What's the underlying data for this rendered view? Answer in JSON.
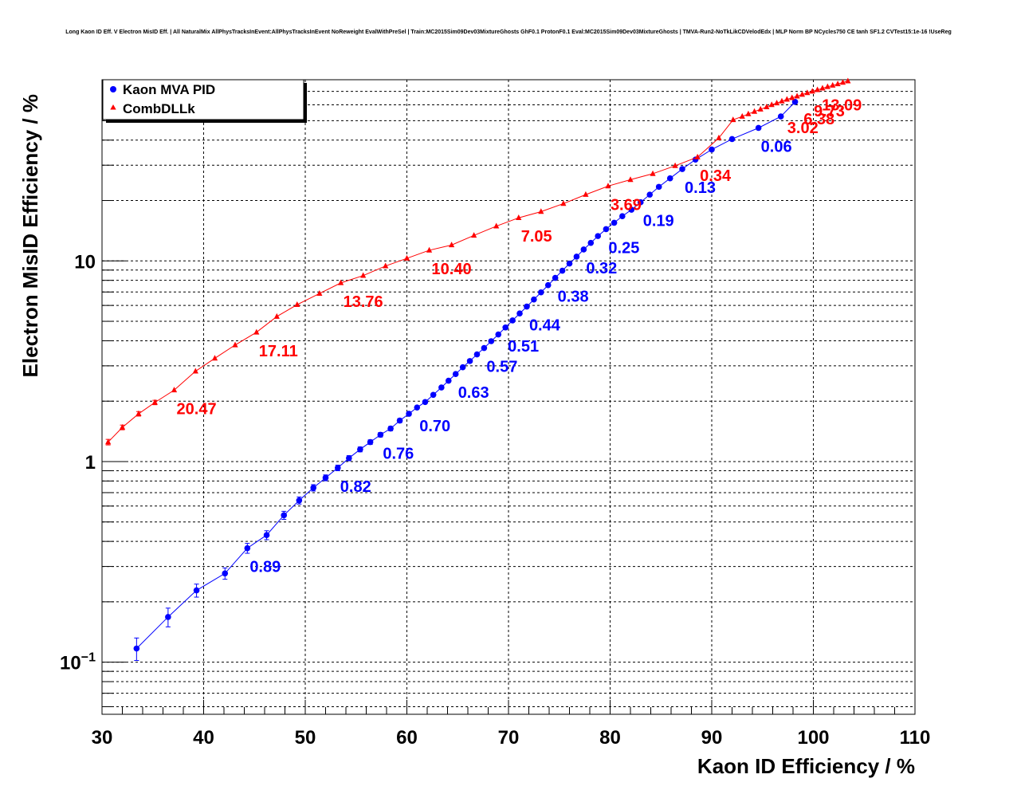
{
  "title": "Long Kaon ID Eff. V Electron MisID Eff. | All NaturalMix AllPhysTracksInEvent:AllPhysTracksInEvent NoReweight EvalWithPreSel | Train:MC2015Sim09Dev03MixtureGhosts GhF0.1 ProtonF0.1 Eval:MC2015Sim09Dev03MixtureGhosts | TMVA-Run2-NoTkLikCDVelodEdx | MLP Norm BP NCycles750 CE tanh SF1.2 CVTest15:1e-16 !UseReg",
  "colors": {
    "kaon_mva": "#0000ff",
    "combdllk": "#ff0000",
    "grid": "#000000"
  },
  "chart_data": {
    "type": "scatter",
    "xlabel": "Kaon ID Efficiency / %",
    "ylabel": "Electron MisID Efficiency / %",
    "xlim": [
      30,
      110
    ],
    "ylim": [
      0.055,
      80
    ],
    "y_scale": "log",
    "grid": true,
    "legend_position": "top-left",
    "x_ticks": [
      "30",
      "40",
      "50",
      "60",
      "70",
      "80",
      "90",
      "100",
      "110"
    ],
    "y_ticks": [
      {
        "value": 0.1,
        "base": "10",
        "exp": "−1"
      },
      {
        "value": 1,
        "base": "1",
        "exp": ""
      },
      {
        "value": 10,
        "base": "10",
        "exp": ""
      }
    ],
    "series": [
      {
        "name": "Kaon MVA PID",
        "marker": "circle",
        "color": "#0000ff",
        "x": [
          33.4,
          36.5,
          39.3,
          42.1,
          44.3,
          46.2,
          47.9,
          49.4,
          50.8,
          52.0,
          53.2,
          54.3,
          55.4,
          56.4,
          57.4,
          58.4,
          59.3,
          60.2,
          61.0,
          61.8,
          62.6,
          63.4,
          64.1,
          64.8,
          65.5,
          66.2,
          66.9,
          67.6,
          68.3,
          69.0,
          69.7,
          70.4,
          71.1,
          71.8,
          72.5,
          73.2,
          73.9,
          74.6,
          75.3,
          76.0,
          76.7,
          77.4,
          78.1,
          78.8,
          79.6,
          80.4,
          81.2,
          82.1,
          83.0,
          83.9,
          84.8,
          85.9,
          87.1,
          88.4,
          90.0,
          92.0,
          94.6,
          96.8,
          98.2
        ],
        "y": [
          0.117,
          0.168,
          0.228,
          0.277,
          0.37,
          0.43,
          0.54,
          0.64,
          0.74,
          0.83,
          0.93,
          1.04,
          1.15,
          1.25,
          1.36,
          1.46,
          1.6,
          1.73,
          1.86,
          1.98,
          2.15,
          2.34,
          2.53,
          2.73,
          2.95,
          3.17,
          3.42,
          3.68,
          3.98,
          4.3,
          4.66,
          5.05,
          5.47,
          5.92,
          6.42,
          6.97,
          7.57,
          8.23,
          8.94,
          9.7,
          10.5,
          11.4,
          12.3,
          13.3,
          14.4,
          15.5,
          16.7,
          18.0,
          19.6,
          21.4,
          23.4,
          25.8,
          28.7,
          32.0,
          35.9,
          40.5,
          46.0,
          52.5,
          62.0
        ],
        "yerr": [
          0.015,
          0.018,
          0.017,
          0.018,
          0.021,
          0.022,
          0.025,
          0.026,
          0.027,
          0.028,
          0.03,
          0.03,
          0.032,
          0.033,
          0.035,
          0.036,
          0.038,
          0.04,
          0.042,
          0.044,
          0.046,
          0.048,
          0.05,
          0.052,
          0.055,
          0.058,
          0.06,
          0.063,
          0.066,
          0.07,
          0.073,
          0.077,
          0.08,
          0.085,
          0.09,
          0.095,
          0.1,
          0.1,
          0.11,
          0.12,
          0.12,
          0.13,
          0.14,
          0.15,
          0.16,
          0.17,
          0.18,
          0.19,
          0.2,
          0.21,
          0.22,
          0.24,
          0.26,
          0.28,
          0.3,
          0.32,
          0.35,
          0.38,
          0.42
        ]
      },
      {
        "name": "CombDLLk",
        "marker": "triangle",
        "color": "#ff0000",
        "x": [
          30.6,
          32.0,
          33.6,
          35.2,
          37.1,
          39.2,
          41.1,
          43.1,
          45.2,
          47.2,
          49.2,
          51.4,
          53.5,
          55.7,
          57.9,
          60.0,
          62.2,
          64.4,
          66.6,
          68.8,
          71.0,
          73.2,
          75.4,
          77.6,
          79.8,
          82.0,
          84.2,
          86.4,
          88.6,
          90.7,
          92.1,
          93.0,
          93.6,
          94.2,
          94.8,
          95.4,
          95.9,
          96.4,
          96.9,
          97.4,
          97.9,
          98.4,
          98.9,
          99.4,
          99.9,
          100.4,
          100.9,
          101.4,
          101.9,
          102.4,
          102.9,
          103.4
        ],
        "y": [
          1.25,
          1.48,
          1.73,
          1.97,
          2.27,
          2.82,
          3.27,
          3.81,
          4.41,
          5.28,
          6.05,
          6.88,
          7.77,
          8.45,
          9.43,
          10.3,
          11.3,
          12.0,
          13.4,
          14.9,
          16.4,
          17.6,
          19.3,
          21.4,
          23.6,
          25.4,
          27.2,
          29.8,
          32.9,
          41.0,
          50.5,
          52.5,
          54.0,
          55.5,
          57.0,
          58.5,
          60.0,
          61.2,
          62.5,
          63.8,
          65.0,
          66.2,
          67.5,
          68.8,
          70.0,
          71.2,
          72.5,
          73.8,
          75.0,
          76.2,
          77.5,
          78.8
        ],
        "yerr": [
          0.04,
          0.04,
          0.045,
          0.05,
          0.05,
          0.055,
          0.06,
          0.06,
          0.065,
          0.07,
          0.07,
          0.08,
          0.08,
          0.09,
          0.09,
          0.1,
          0.1,
          0.11,
          0.11,
          0.12,
          0.12,
          0.13,
          0.13,
          0.14,
          0.15,
          0.15,
          0.16,
          0.17,
          0.18,
          0.2,
          0.22,
          0.22,
          0.23,
          0.23,
          0.24,
          0.24,
          0.25,
          0.25,
          0.26,
          0.26,
          0.27,
          0.27,
          0.28,
          0.28,
          0.29,
          0.29,
          0.3,
          0.3,
          0.31,
          0.31,
          0.32,
          0.32
        ]
      }
    ],
    "annotations": [
      {
        "series": 0,
        "text": "0.89",
        "x": 44.3,
        "y": 0.37
      },
      {
        "series": 0,
        "text": "0.82",
        "x": 53.2,
        "y": 0.93
      },
      {
        "series": 0,
        "text": "0.76",
        "x": 57.4,
        "y": 1.36
      },
      {
        "series": 0,
        "text": "0.70",
        "x": 61.0,
        "y": 1.86
      },
      {
        "series": 0,
        "text": "0.63",
        "x": 64.8,
        "y": 2.73
      },
      {
        "series": 0,
        "text": "0.57",
        "x": 67.6,
        "y": 3.68
      },
      {
        "series": 0,
        "text": "0.51",
        "x": 69.7,
        "y": 4.66
      },
      {
        "series": 0,
        "text": "0.44",
        "x": 71.8,
        "y": 5.92
      },
      {
        "series": 0,
        "text": "0.38",
        "x": 74.6,
        "y": 8.23
      },
      {
        "series": 0,
        "text": "0.32",
        "x": 77.4,
        "y": 11.4
      },
      {
        "series": 0,
        "text": "0.25",
        "x": 79.6,
        "y": 14.4
      },
      {
        "series": 0,
        "text": "0.19",
        "x": 83.0,
        "y": 19.6
      },
      {
        "series": 0,
        "text": "0.13",
        "x": 87.1,
        "y": 28.7
      },
      {
        "series": 0,
        "text": "0.06",
        "x": 94.6,
        "y": 46.0
      },
      {
        "series": 1,
        "text": "20.47",
        "x": 37.1,
        "y": 2.27
      },
      {
        "series": 1,
        "text": "17.11",
        "x": 45.2,
        "y": 4.41
      },
      {
        "series": 1,
        "text": "13.76",
        "x": 53.5,
        "y": 7.77
      },
      {
        "series": 1,
        "text": "10.40",
        "x": 62.2,
        "y": 11.3
      },
      {
        "series": 1,
        "text": "7.05",
        "x": 71.0,
        "y": 16.4
      },
      {
        "series": 1,
        "text": "3.69",
        "x": 79.8,
        "y": 23.6
      },
      {
        "series": 1,
        "text": "0.34",
        "x": 88.6,
        "y": 32.9
      },
      {
        "series": 1,
        "text": "3.02",
        "x": 97.2,
        "y": 57.0
      },
      {
        "series": 1,
        "text": "6.38",
        "x": 98.8,
        "y": 63.0
      },
      {
        "series": 1,
        "text": "9.73",
        "x": 99.8,
        "y": 69.0
      },
      {
        "series": 1,
        "text": "13.09",
        "x": 100.6,
        "y": 74.0
      }
    ]
  }
}
